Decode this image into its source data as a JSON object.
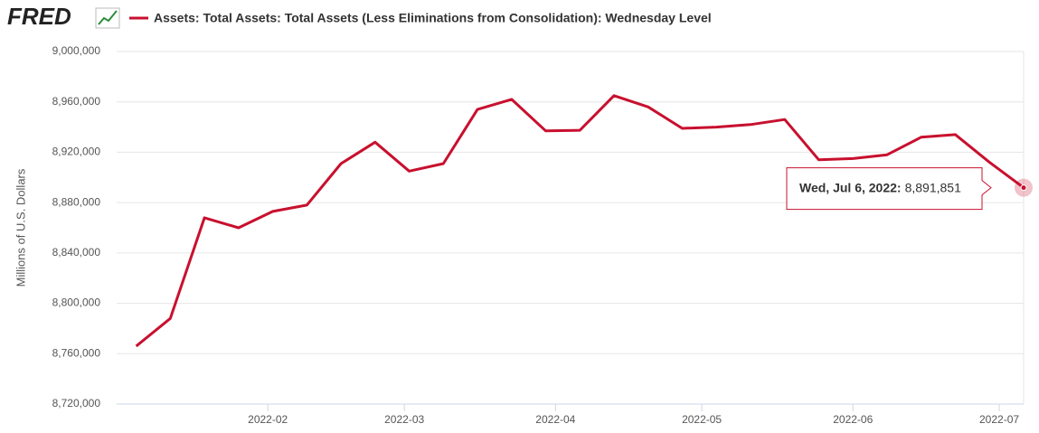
{
  "logo": "FRED",
  "chart_data": {
    "type": "line",
    "y_label": "Millions of U.S. Dollars",
    "x": [
      "2022-01-05",
      "2022-01-12",
      "2022-01-19",
      "2022-01-26",
      "2022-02-02",
      "2022-02-09",
      "2022-02-16",
      "2022-02-23",
      "2022-03-02",
      "2022-03-09",
      "2022-03-16",
      "2022-03-23",
      "2022-03-30",
      "2022-04-06",
      "2022-04-13",
      "2022-04-20",
      "2022-04-27",
      "2022-05-04",
      "2022-05-11",
      "2022-05-18",
      "2022-05-25",
      "2022-06-01",
      "2022-06-08",
      "2022-06-15",
      "2022-06-22",
      "2022-06-29",
      "2022-07-06"
    ],
    "series": [
      {
        "name": "Assets: Total Assets: Total Assets (Less Eliminations from Consolidation): Wednesday Level",
        "color": "#c8102e",
        "values": [
          8766000,
          8788000,
          8868000,
          8860000,
          8873000,
          8878000,
          8911000,
          8928000,
          8905000,
          8911000,
          8954000,
          8962000,
          8937000,
          8937500,
          8965000,
          8956000,
          8939000,
          8940000,
          8942000,
          8946000,
          8914000,
          8915000,
          8918000,
          8932000,
          8934000,
          8912000,
          8891851
        ]
      }
    ],
    "tooltip": {
      "label": "Wed, Jul 6, 2022:",
      "value_label": "8,891,851"
    },
    "xlim": [
      "2022-01-01",
      "2022-07-06"
    ],
    "xticks": [
      {
        "value": "2022-02-01",
        "label": "2022-02"
      },
      {
        "value": "2022-03-01",
        "label": "2022-03"
      },
      {
        "value": "2022-04-01",
        "label": "2022-04"
      },
      {
        "value": "2022-05-01",
        "label": "2022-05"
      },
      {
        "value": "2022-06-01",
        "label": "2022-06"
      },
      {
        "value": "2022-07-01",
        "label": "2022-07"
      }
    ],
    "ylim": [
      8720000,
      9000000
    ],
    "yticks": [
      {
        "value": 8720000,
        "label": "8,720,000"
      },
      {
        "value": 8760000,
        "label": "8,760,000"
      },
      {
        "value": 8800000,
        "label": "8,800,000"
      },
      {
        "value": 8840000,
        "label": "8,840,000"
      },
      {
        "value": 8880000,
        "label": "8,880,000"
      },
      {
        "value": 8920000,
        "label": "8,920,000"
      },
      {
        "value": 8960000,
        "label": "8,960,000"
      },
      {
        "value": 9000000,
        "label": "9,000,000"
      }
    ],
    "grid": true
  }
}
